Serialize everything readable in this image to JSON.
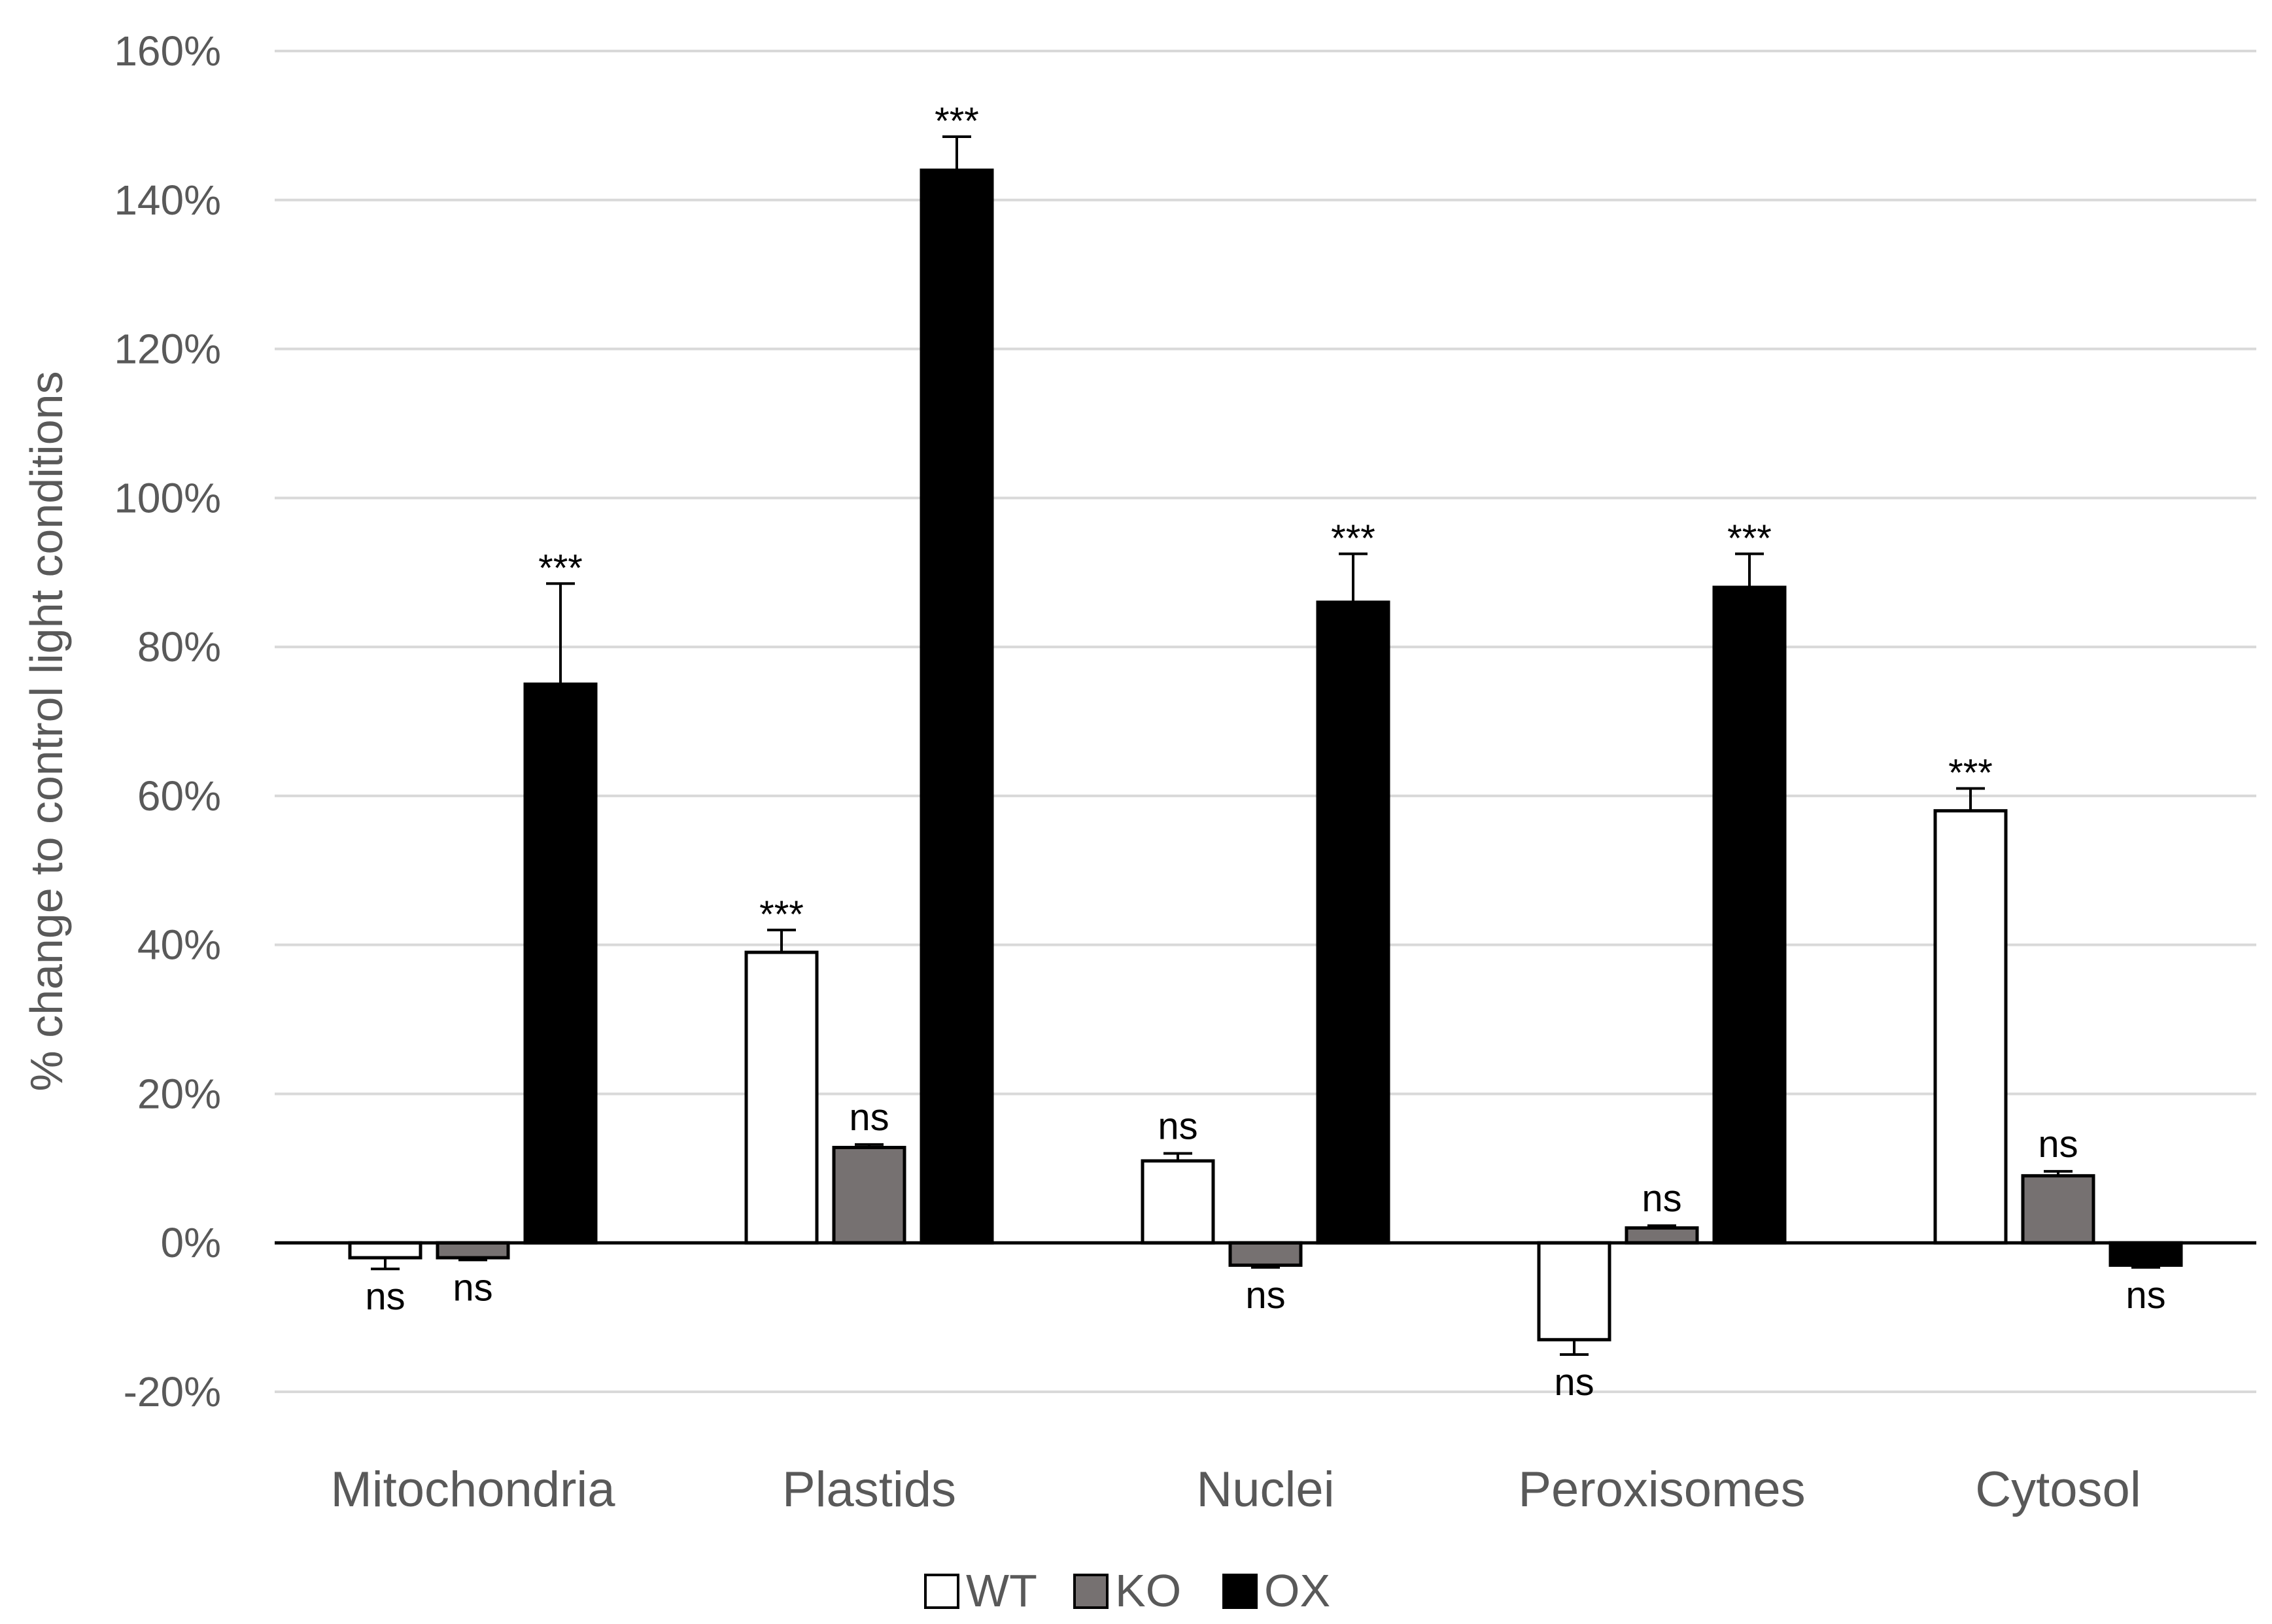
{
  "chart_data": {
    "type": "bar",
    "title": "",
    "xlabel": "",
    "ylabel": "% change to control light conditions",
    "ylim": [
      -20,
      160
    ],
    "yticks": [
      -20,
      0,
      20,
      40,
      60,
      80,
      100,
      120,
      140,
      160
    ],
    "ytick_labels": [
      "-20%",
      "0%",
      "20%",
      "40%",
      "60%",
      "80%",
      "100%",
      "120%",
      "140%",
      "160%"
    ],
    "grid": true,
    "legend_position": "bottom",
    "categories": [
      "Mitochondria",
      "Plastids",
      "Nuclei",
      "Peroxisomes",
      "Cytosol"
    ],
    "series": [
      {
        "name": "WT",
        "color": "#ffffff",
        "values": [
          -2,
          39,
          11,
          -13,
          58
        ],
        "errors": [
          1.5,
          3,
          1,
          2,
          3
        ],
        "significance": [
          "ns",
          "***",
          "ns",
          "ns",
          "***"
        ]
      },
      {
        "name": "KO",
        "color": "#767171",
        "values": [
          -2,
          12.8,
          -3,
          2,
          9
        ],
        "errors": [
          0.3,
          0.4,
          0.3,
          0.3,
          0.6
        ],
        "significance": [
          "ns",
          "ns",
          "ns",
          "ns",
          "ns"
        ]
      },
      {
        "name": "OX",
        "color": "#000000",
        "values": [
          75,
          144,
          86,
          88,
          -3
        ],
        "errors": [
          13.5,
          4.5,
          6.5,
          4.5,
          0.3
        ],
        "significance": [
          "***",
          "***",
          "***",
          "***",
          "ns"
        ]
      }
    ]
  }
}
